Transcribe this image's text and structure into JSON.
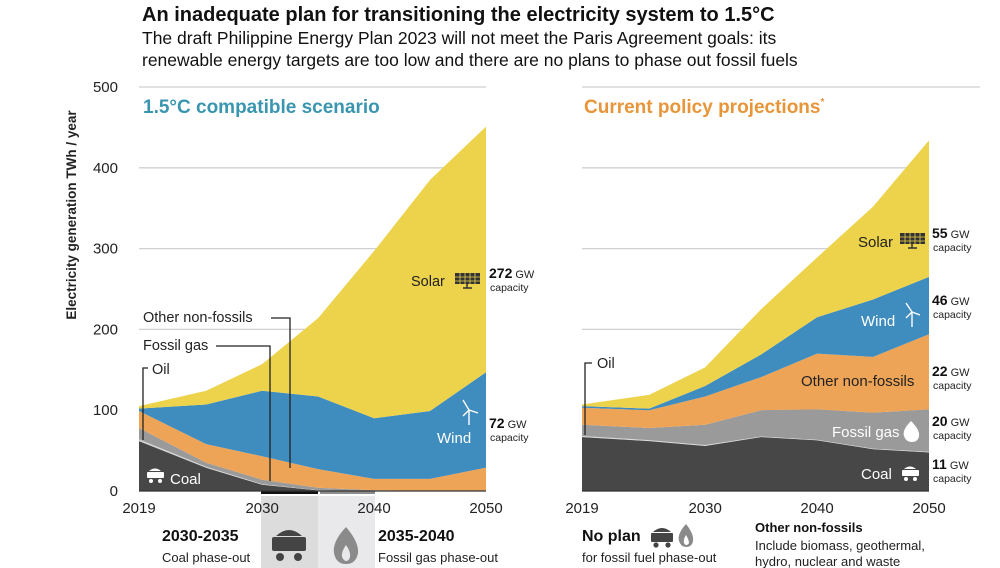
{
  "title": "An inadequate plan for transitioning the electricity system to 1.5°C",
  "subtitle_line1": "The draft Philippine Energy Plan 2023 will not meet the Paris Agreement goals: its",
  "subtitle_line2": "renewable energy targets are too low and there are no plans to phase out fossil fuels",
  "colors": {
    "coal": "#474747",
    "oil": "#cfcfcf",
    "gas": "#9a9a9a",
    "other": "#eea456",
    "wind": "#3f8cbf",
    "solar": "#ecd34b",
    "left_title": "#3a95b1",
    "right_title": "#e8953a"
  },
  "chart_data": [
    {
      "type": "area",
      "stacked": true,
      "title": "1.5°C compatible scenario",
      "ylabel": "Electricity generation TWh / year",
      "ylim": [
        0,
        500
      ],
      "yticks": [
        "0",
        "100",
        "200",
        "300",
        "400",
        "500"
      ],
      "xticks": [
        "2019",
        "2030",
        "2040",
        "2050"
      ],
      "grid": true,
      "x": [
        2019,
        2025,
        2030,
        2035,
        2040,
        2045,
        2050
      ],
      "series": [
        {
          "name": "Coal",
          "key": "coal",
          "values": [
            62,
            29,
            8,
            1,
            0,
            0,
            0
          ]
        },
        {
          "name": "Oil",
          "key": "oil",
          "values": [
            2,
            1,
            0.5,
            0,
            0,
            0,
            0
          ]
        },
        {
          "name": "Fossil gas",
          "key": "gas",
          "values": [
            14,
            5,
            5.5,
            3,
            1,
            0,
            0
          ]
        },
        {
          "name": "Other non-fossils",
          "key": "other",
          "values": [
            21,
            23,
            29,
            23,
            14,
            15,
            29
          ]
        },
        {
          "name": "Wind",
          "key": "wind",
          "values": [
            3,
            49,
            81,
            90,
            75,
            84,
            118
          ]
        },
        {
          "name": "Solar",
          "key": "solar",
          "values": [
            3,
            17,
            33,
            97,
            207,
            286,
            304
          ]
        }
      ],
      "capacity": [
        {
          "series": "Solar",
          "value": "272",
          "unit": "GW",
          "suffix": "capacity"
        },
        {
          "series": "Wind",
          "value": "72",
          "unit": "GW",
          "suffix": "capacity"
        }
      ]
    },
    {
      "type": "area",
      "stacked": true,
      "title": "Current policy projections",
      "title_mark": "*",
      "ylim": [
        0,
        500
      ],
      "xticks": [
        "2019",
        "2030",
        "2040",
        "2050"
      ],
      "grid": true,
      "x": [
        2019,
        2025,
        2030,
        2035,
        2040,
        2045,
        2050
      ],
      "series": [
        {
          "name": "Coal",
          "key": "coal",
          "values": [
            67,
            62,
            56,
            67,
            63,
            52,
            48
          ]
        },
        {
          "name": "Oil",
          "key": "oil",
          "values": [
            1,
            1,
            1,
            0.5,
            0.5,
            0.5,
            0.5
          ]
        },
        {
          "name": "Fossil gas",
          "key": "gas",
          "values": [
            14,
            15,
            25,
            32.5,
            37.5,
            44.5,
            52.5
          ]
        },
        {
          "name": "Other non-fossils",
          "key": "other",
          "values": [
            21,
            22,
            35,
            41,
            69,
            69,
            93
          ]
        },
        {
          "name": "Wind",
          "key": "wind",
          "values": [
            2,
            2,
            13,
            28,
            45,
            71,
            71
          ]
        },
        {
          "name": "Solar",
          "key": "solar",
          "values": [
            2,
            17,
            23,
            56,
            74,
            115,
            169
          ]
        }
      ],
      "capacity": [
        {
          "series": "Solar",
          "value": "55",
          "unit": "GW",
          "suffix": "capacity"
        },
        {
          "series": "Wind",
          "value": "46",
          "unit": "GW",
          "suffix": "capacity"
        },
        {
          "series": "Other non-fossils",
          "value": "22",
          "unit": "GW",
          "suffix": "capacity"
        },
        {
          "series": "Fossil gas",
          "value": "20",
          "unit": "GW",
          "suffix": "capacity"
        },
        {
          "series": "Coal",
          "value": "11",
          "unit": "GW",
          "suffix": "capacity"
        }
      ]
    }
  ],
  "left_labels": {
    "other": "Other non-fossils",
    "gas": "Fossil gas",
    "oil": "Oil",
    "solar": "Solar",
    "wind": "Wind",
    "coal": "Coal"
  },
  "right_labels": {
    "oil": "Oil",
    "solar": "Solar",
    "wind": "Wind",
    "other": "Other non-fossils",
    "gas": "Fossil gas",
    "coal": "Coal"
  },
  "footer": {
    "coal_period": "2030-2035",
    "coal_text": "Coal phase-out",
    "gas_period": "2035-2040",
    "gas_text": "Fossil gas phase-out",
    "no_plan": "No plan",
    "no_plan_text": "for fossil fuel phase-out",
    "note_title": "Other non-fossils",
    "note_line1": "Include biomass, geothermal,",
    "note_line2": "hydro, nuclear and waste"
  }
}
